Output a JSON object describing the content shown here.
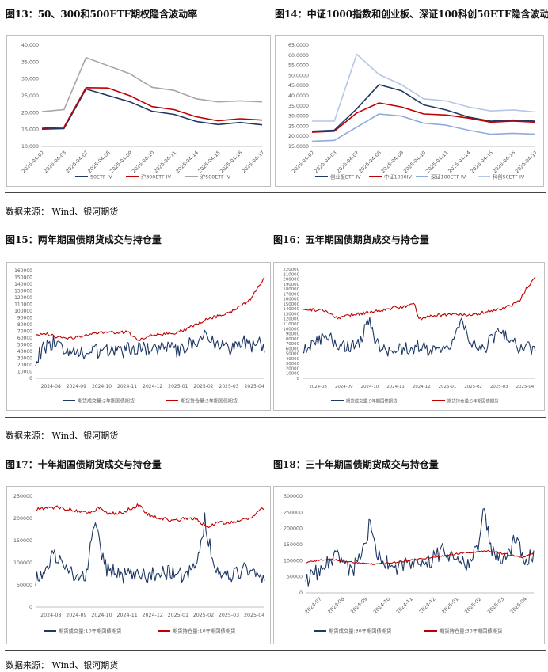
{
  "figures": {
    "f13": {
      "title": "图13：50、300和500ETF期权隐含波动率"
    },
    "f14": {
      "title": "图14：中证1000指数和创业板、深证100科创50ETF隐含波动率"
    },
    "f15": {
      "title": "图15：两年期国债期货成交与持仓量"
    },
    "f16": {
      "title": "图16：五年期国债期货成交与持仓量"
    },
    "f17": {
      "title": "图17：十年期国债期货成交与持仓量"
    },
    "f18": {
      "title": "图18：三十年期国债期货成交与持仓量"
    }
  },
  "sources": {
    "s1": "数据来源：  Wind、银河期货",
    "s2": "数据来源：  Wind、银河期货",
    "s3": "数据来源：  Wind、银河期货"
  },
  "colors": {
    "navy": "#1f3864",
    "red": "#c00000",
    "gray": "#a6a6a6",
    "lightblue": "#8faadc",
    "paleblue": "#b4c7e7"
  },
  "chart_data": [
    {
      "id": "c13",
      "type": "line",
      "categories": [
        "2025-04-02",
        "2025-04-03",
        "2025-04-07",
        "2025-04-08",
        "2025-04-09",
        "2025-04-10",
        "2025-04-11",
        "2025-04-14",
        "2025-04-15",
        "2025-04-16",
        "2025-04-17"
      ],
      "ylim": [
        10000,
        40000
      ],
      "yticks": [
        "10,000",
        "15,000",
        "20,000",
        "25,000",
        "30,000",
        "35,000",
        "40,000"
      ],
      "series": [
        {
          "name": "50ETF IV",
          "color": "#1f3864",
          "values": [
            15100,
            15300,
            27000,
            25100,
            23200,
            20400,
            19500,
            17400,
            16500,
            17100,
            16400
          ]
        },
        {
          "name": "沪300ETF IV",
          "color": "#c00000",
          "values": [
            15400,
            15700,
            27400,
            27300,
            25000,
            21800,
            20900,
            18800,
            17600,
            18200,
            17800
          ]
        },
        {
          "name": "沪500ETF IV",
          "color": "#a6a6a6",
          "values": [
            20300,
            20900,
            36300,
            33900,
            31500,
            27500,
            26600,
            24100,
            23200,
            23500,
            23200
          ]
        }
      ]
    },
    {
      "id": "c14",
      "type": "line",
      "categories": [
        "2025-04-02",
        "2025-04-03",
        "2025-04-07",
        "2025-04-08",
        "2025-04-09",
        "2025-04-10",
        "2025-04-11",
        "2025-04-14",
        "2025-04-15",
        "2025-04-16",
        "2025-04-17"
      ],
      "ylim": [
        15000,
        65000
      ],
      "yticks": [
        "15.0000",
        "20.0000",
        "25.0000",
        "30.0000",
        "35.0000",
        "40.0000",
        "45.0000",
        "50.0000",
        "55.0000",
        "60.0000",
        "65.0000"
      ],
      "series": [
        {
          "name": "创业板ETF IV",
          "color": "#1f3864",
          "values": [
            22500,
            23000,
            33500,
            45500,
            42500,
            35500,
            33000,
            29500,
            27500,
            28000,
            27500
          ]
        },
        {
          "name": "中证1000IV",
          "color": "#c00000",
          "values": [
            22000,
            22500,
            31500,
            36500,
            34500,
            31000,
            30500,
            29000,
            27000,
            27500,
            27000
          ]
        },
        {
          "name": "深证100ETF IV",
          "color": "#8faadc",
          "values": [
            17500,
            18000,
            24500,
            31000,
            30000,
            26500,
            25500,
            23000,
            21000,
            21500,
            21000
          ]
        },
        {
          "name": "科创50ETF IV",
          "color": "#b4c7e7",
          "values": [
            27500,
            27500,
            60500,
            50500,
            45500,
            38500,
            37500,
            34500,
            32500,
            33000,
            32000
          ]
        }
      ]
    },
    {
      "id": "c15",
      "type": "line",
      "categories": [
        "2024-08",
        "2024-09",
        "2024-10",
        "2024-11",
        "2024-12",
        "2025-01",
        "2025-02",
        "2025-03",
        "2025-04"
      ],
      "ylim": [
        0,
        160000
      ],
      "yticks": [
        "0",
        "10000",
        "20000",
        "30000",
        "40000",
        "50000",
        "60000",
        "70000",
        "80000",
        "90000",
        "100000",
        "110000",
        "120000",
        "130000",
        "140000",
        "150000",
        "160000"
      ],
      "series": [
        {
          "name": "期货成交量:2年期国债期货",
          "color": "#1f3864",
          "anchors": [
            [
              0,
              26000
            ],
            [
              0.03,
              43000
            ],
            [
              0.08,
              54000
            ],
            [
              0.14,
              42000
            ],
            [
              0.2,
              35000
            ],
            [
              0.28,
              41000
            ],
            [
              0.35,
              38000
            ],
            [
              0.42,
              45000
            ],
            [
              0.5,
              43000
            ],
            [
              0.58,
              47000
            ],
            [
              0.62,
              40000
            ],
            [
              0.66,
              50000
            ],
            [
              0.7,
              53000
            ],
            [
              0.74,
              66000
            ],
            [
              0.8,
              48000
            ],
            [
              0.86,
              43000
            ],
            [
              0.9,
              55000
            ],
            [
              0.94,
              47000
            ],
            [
              0.97,
              58000
            ],
            [
              1,
              38000
            ]
          ],
          "amp": 11000,
          "seed": 15
        },
        {
          "name": "期货持仓量:2年期国债期货",
          "color": "#c00000",
          "anchors": [
            [
              0,
              64000
            ],
            [
              0.05,
              66000
            ],
            [
              0.1,
              61000
            ],
            [
              0.15,
              59000
            ],
            [
              0.2,
              63000
            ],
            [
              0.25,
              66000
            ],
            [
              0.3,
              69000
            ],
            [
              0.35,
              68000
            ],
            [
              0.4,
              69000
            ],
            [
              0.45,
              56000
            ],
            [
              0.5,
              63000
            ],
            [
              0.55,
              66000
            ],
            [
              0.6,
              67000
            ],
            [
              0.65,
              72000
            ],
            [
              0.7,
              80000
            ],
            [
              0.75,
              88000
            ],
            [
              0.8,
              93000
            ],
            [
              0.85,
              98000
            ],
            [
              0.9,
              108000
            ],
            [
              0.94,
              118000
            ],
            [
              0.97,
              135000
            ],
            [
              1,
              150000
            ]
          ],
          "amp": 2200,
          "seed": 25
        }
      ]
    },
    {
      "id": "c16",
      "type": "line",
      "categories": [
        "2024-08",
        "2024-09",
        "2024-10",
        "2024-11",
        "2024-12",
        "2025-01",
        "2025-02",
        "2025-03",
        "2025-04"
      ],
      "ylim": [
        0,
        220000
      ],
      "yticks": [
        "0",
        "10000",
        "20000",
        "30000",
        "40000",
        "50000",
        "60000",
        "70000",
        "80000",
        "90000",
        "100000",
        "110000",
        "120000",
        "130000",
        "140000",
        "150000",
        "160000",
        "170000",
        "180000",
        "190000",
        "200000",
        "210000",
        "220000"
      ],
      "series": [
        {
          "name": "期货成交量:5年期国债期货",
          "color": "#1f3864",
          "anchors": [
            [
              0,
              60000
            ],
            [
              0.05,
              70000
            ],
            [
              0.1,
              85000
            ],
            [
              0.15,
              70000
            ],
            [
              0.2,
              60000
            ],
            [
              0.25,
              75000
            ],
            [
              0.28,
              125000
            ],
            [
              0.32,
              70000
            ],
            [
              0.38,
              55000
            ],
            [
              0.45,
              60000
            ],
            [
              0.5,
              65000
            ],
            [
              0.55,
              55000
            ],
            [
              0.6,
              50000
            ],
            [
              0.65,
              70000
            ],
            [
              0.68,
              115000
            ],
            [
              0.72,
              70000
            ],
            [
              0.78,
              60000
            ],
            [
              0.85,
              100000
            ],
            [
              0.9,
              70000
            ],
            [
              0.95,
              60000
            ],
            [
              1,
              60000
            ]
          ],
          "amp": 14000,
          "seed": 16
        },
        {
          "name": "期货持仓量:5年期国债期货",
          "color": "#c00000",
          "anchors": [
            [
              0,
              140000
            ],
            [
              0.05,
              138000
            ],
            [
              0.1,
              136000
            ],
            [
              0.15,
              120000
            ],
            [
              0.2,
              128000
            ],
            [
              0.25,
              130000
            ],
            [
              0.3,
              135000
            ],
            [
              0.35,
              138000
            ],
            [
              0.4,
              143000
            ],
            [
              0.45,
              145000
            ],
            [
              0.48,
              150000
            ],
            [
              0.5,
              120000
            ],
            [
              0.55,
              125000
            ],
            [
              0.6,
              128000
            ],
            [
              0.65,
              130000
            ],
            [
              0.7,
              128000
            ],
            [
              0.75,
              130000
            ],
            [
              0.8,
              135000
            ],
            [
              0.85,
              140000
            ],
            [
              0.9,
              148000
            ],
            [
              0.93,
              155000
            ],
            [
              0.96,
              180000
            ],
            [
              1,
              205000
            ]
          ],
          "amp": 3000,
          "seed": 26
        }
      ]
    },
    {
      "id": "c17",
      "type": "line",
      "categories": [
        "2024-08",
        "2024-09",
        "2024-10",
        "2024-11",
        "2024-12",
        "2025-01",
        "2025-02",
        "2025-03",
        "2025-04"
      ],
      "ylim": [
        0,
        250000
      ],
      "yticks": [
        "0",
        "50000",
        "100000",
        "150000",
        "200000",
        "250000"
      ],
      "series": [
        {
          "name": "期货成交量:10年期国债期货",
          "color": "#1f3864",
          "anchors": [
            [
              0,
              55000
            ],
            [
              0.05,
              100000
            ],
            [
              0.08,
              130000
            ],
            [
              0.12,
              80000
            ],
            [
              0.18,
              75000
            ],
            [
              0.22,
              60000
            ],
            [
              0.26,
              200000
            ],
            [
              0.3,
              90000
            ],
            [
              0.35,
              80000
            ],
            [
              0.4,
              70000
            ],
            [
              0.45,
              75000
            ],
            [
              0.5,
              70000
            ],
            [
              0.55,
              80000
            ],
            [
              0.6,
              75000
            ],
            [
              0.65,
              70000
            ],
            [
              0.7,
              90000
            ],
            [
              0.74,
              200000
            ],
            [
              0.78,
              80000
            ],
            [
              0.85,
              70000
            ],
            [
              0.9,
              85000
            ],
            [
              0.95,
              70000
            ],
            [
              1,
              75000
            ]
          ],
          "amp": 20000,
          "seed": 17
        },
        {
          "name": "期货持仓量:10年期国债期货",
          "color": "#c00000",
          "anchors": [
            [
              0,
              220000
            ],
            [
              0.05,
              225000
            ],
            [
              0.1,
              225000
            ],
            [
              0.15,
              220000
            ],
            [
              0.2,
              215000
            ],
            [
              0.25,
              215000
            ],
            [
              0.28,
              225000
            ],
            [
              0.32,
              210000
            ],
            [
              0.38,
              215000
            ],
            [
              0.45,
              230000
            ],
            [
              0.5,
              205000
            ],
            [
              0.55,
              200000
            ],
            [
              0.6,
              195000
            ],
            [
              0.65,
              200000
            ],
            [
              0.7,
              200000
            ],
            [
              0.75,
              180000
            ],
            [
              0.8,
              190000
            ],
            [
              0.85,
              190000
            ],
            [
              0.9,
              195000
            ],
            [
              0.95,
              205000
            ],
            [
              1,
              225000
            ]
          ],
          "amp": 4000,
          "seed": 27
        }
      ]
    },
    {
      "id": "c18",
      "type": "line",
      "categories": [
        "2024-07",
        "2024-08",
        "2024-09",
        "2024-10",
        "2024-11",
        "2024-12",
        "2025-01",
        "2025-02",
        "2025-03",
        "2025-04"
      ],
      "ylim": [
        0,
        300000
      ],
      "yticks": [
        "0",
        "50000",
        "100000",
        "150000",
        "200000",
        "250000",
        "300000"
      ],
      "series": [
        {
          "name": "期货成交量:30年期国债期货",
          "color": "#1f3864",
          "anchors": [
            [
              0,
              40000
            ],
            [
              0.08,
              80000
            ],
            [
              0.14,
              120000
            ],
            [
              0.2,
              60000
            ],
            [
              0.26,
              150000
            ],
            [
              0.28,
              215000
            ],
            [
              0.32,
              110000
            ],
            [
              0.38,
              80000
            ],
            [
              0.45,
              90000
            ],
            [
              0.55,
              100000
            ],
            [
              0.6,
              130000
            ],
            [
              0.65,
              110000
            ],
            [
              0.7,
              90000
            ],
            [
              0.75,
              130000
            ],
            [
              0.78,
              250000
            ],
            [
              0.82,
              120000
            ],
            [
              0.88,
              110000
            ],
            [
              0.92,
              170000
            ],
            [
              0.96,
              110000
            ],
            [
              1,
              110000
            ]
          ],
          "amp": 25000,
          "seed": 18
        },
        {
          "name": "期货持仓量:30年期国债期货",
          "color": "#c00000",
          "anchors": [
            [
              0,
              95000
            ],
            [
              0.1,
              105000
            ],
            [
              0.2,
              95000
            ],
            [
              0.3,
              90000
            ],
            [
              0.4,
              95000
            ],
            [
              0.5,
              105000
            ],
            [
              0.6,
              115000
            ],
            [
              0.7,
              125000
            ],
            [
              0.8,
              130000
            ],
            [
              0.88,
              120000
            ],
            [
              0.95,
              110000
            ],
            [
              1,
              125000
            ]
          ],
          "amp": 2500,
          "seed": 28
        }
      ]
    }
  ]
}
